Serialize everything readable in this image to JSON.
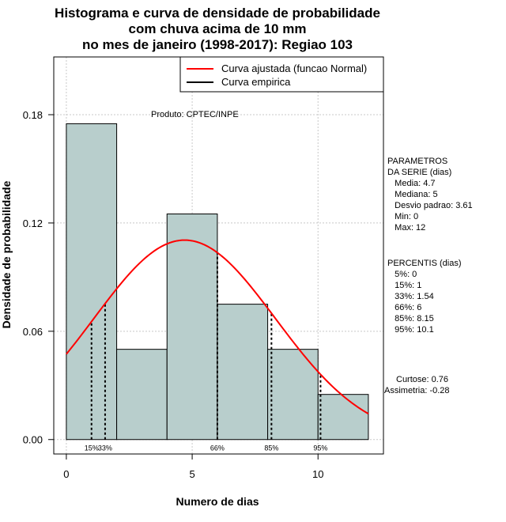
{
  "chart_data": {
    "type": "bar",
    "title_lines": [
      "Histograma e curva de densidade de probabilidade",
      "com chuva acima de 10 mm",
      "no mes de janeiro (1998-2017): Regiao 103"
    ],
    "xlabel": "Numero de dias",
    "ylabel": "Densidade de probabilidade",
    "xlim": [
      -0.5,
      12.6
    ],
    "ylim": [
      -0.008,
      0.212
    ],
    "x_ticks": [
      0,
      5,
      10
    ],
    "x_tick_labels": [
      "0",
      "5",
      "10"
    ],
    "y_ticks": [
      0.0,
      0.06,
      0.12,
      0.18
    ],
    "y_tick_labels": [
      "0.00",
      "0.06",
      "0.12",
      "0.18"
    ],
    "grid": true,
    "bins": [
      {
        "from": 0,
        "to": 2,
        "density": 0.175
      },
      {
        "from": 2,
        "to": 4,
        "density": 0.05
      },
      {
        "from": 4,
        "to": 6,
        "density": 0.125
      },
      {
        "from": 6,
        "to": 8,
        "density": 0.075
      },
      {
        "from": 8,
        "to": 10,
        "density": 0.05
      },
      {
        "from": 10,
        "to": 12,
        "density": 0.025
      }
    ],
    "bar_color": "#b8cecc",
    "fitted_curve": {
      "name": "Curva ajustada (funcao Normal)",
      "mean": 4.7,
      "sd": 3.61,
      "x_range": [
        0,
        12
      ],
      "color": "#ff0000"
    },
    "empirical_curve": {
      "name": "Curva empirica",
      "color": "#000000"
    },
    "percentile_markers": [
      {
        "label": "15%",
        "x": 1.0
      },
      {
        "label": "33%",
        "x": 1.54
      },
      {
        "label": "66%",
        "x": 6.0
      },
      {
        "label": "85%",
        "x": 8.15
      },
      {
        "label": "95%",
        "x": 10.1
      }
    ],
    "legend_position": "top-right",
    "legend": [
      "Curva ajustada (funcao Normal)",
      "Curva empirica"
    ],
    "annotations": {
      "producer": "Produto: CPTEC/INPE",
      "parameters": [
        "PARAMETROS",
        "DA SERIE (dias)",
        "   Media: 4.7",
        "   Mediana: 5",
        "   Desvio padrao: 3.61",
        "   Min: 0",
        "   Max: 12"
      ],
      "percentiles": [
        "PERCENTIS (dias)",
        "   5%: 0",
        "   15%: 1",
        "   33%: 1.54",
        "   66%: 6",
        "   85%: 8.15",
        "   95%: 10.1"
      ],
      "shape": [
        "Curtose: 0.76",
        "Assimetria: -0.28"
      ]
    }
  }
}
